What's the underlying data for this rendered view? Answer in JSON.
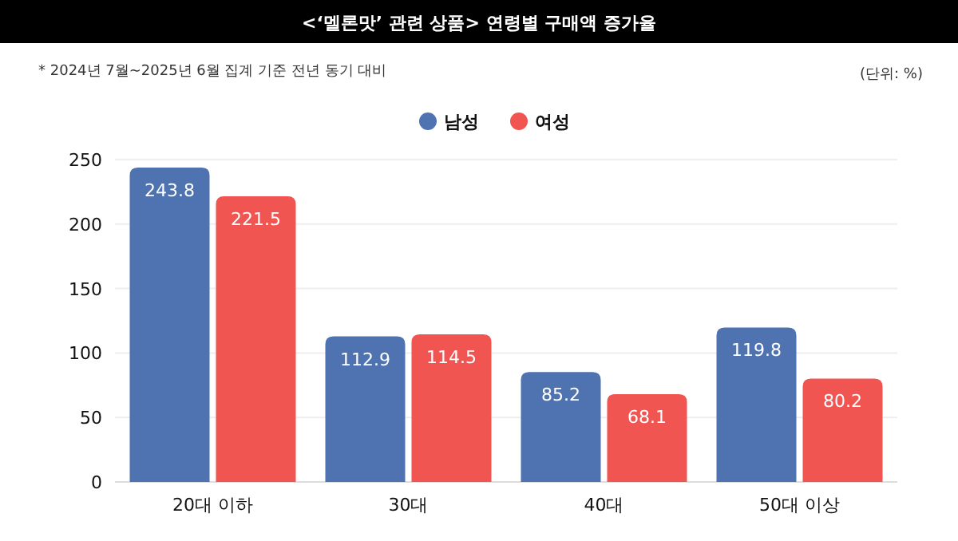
{
  "chart_data": {
    "type": "bar",
    "title": "<‘멜론맛’ 관련 상품> 연령별 구매액 증가율",
    "annotations": [
      "* 2024년 7월~2025년 6월 집계 기준 전년 동기 대비",
      "(단위: %)"
    ],
    "categories": [
      "20대 이하",
      "30대",
      "40대",
      "50대 이상"
    ],
    "series": [
      {
        "name": "남성",
        "color": "#4f73b0",
        "values": [
          243.8,
          112.9,
          85.2,
          119.8
        ]
      },
      {
        "name": "여성",
        "color": "#f05552",
        "values": [
          221.5,
          114.5,
          68.1,
          80.2
        ]
      }
    ],
    "ylim": [
      0,
      250
    ],
    "yticks": [
      0,
      50,
      100,
      150,
      200,
      250
    ],
    "grid": "y",
    "legend": "top",
    "data_labels": true
  }
}
